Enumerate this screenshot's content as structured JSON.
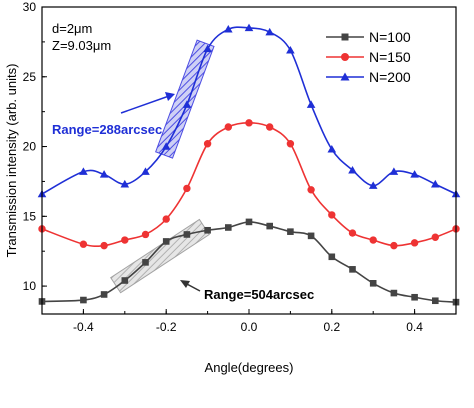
{
  "chart_data": {
    "type": "line",
    "xlabel": "Angle(degrees)",
    "ylabel": "Transmission intensity (arb. units)",
    "xlim": [
      -0.5,
      0.5
    ],
    "ylim": [
      8.0,
      30.0
    ],
    "xticks": [
      -0.4,
      -0.2,
      0.0,
      0.2,
      0.4
    ],
    "xtick_labels": [
      "-0.4",
      "-0.2",
      "0.0",
      "0.2",
      "0.4"
    ],
    "yticks": [
      10,
      15,
      20,
      25,
      30
    ],
    "ytick_labels": [
      "10",
      "15",
      "20",
      "25",
      "30"
    ],
    "grid": false,
    "legend_position": "top-right",
    "x": [
      -0.5,
      -0.4,
      -0.35,
      -0.3,
      -0.25,
      -0.2,
      -0.15,
      -0.1,
      -0.05,
      0.0,
      0.05,
      0.1,
      0.15,
      0.2,
      0.25,
      0.3,
      0.35,
      0.4,
      0.45,
      0.5
    ],
    "series": [
      {
        "name": "N=100",
        "color": "#444444",
        "marker": "square",
        "values": [
          8.9,
          9.0,
          9.4,
          10.4,
          11.7,
          13.2,
          13.7,
          14.0,
          14.2,
          14.6,
          14.3,
          13.9,
          13.6,
          12.1,
          11.2,
          10.2,
          9.5,
          9.2,
          8.95,
          8.85
        ]
      },
      {
        "name": "N=150",
        "color": "#ee3333",
        "marker": "circle",
        "values": [
          14.1,
          13.0,
          12.9,
          13.3,
          13.7,
          14.8,
          17.0,
          20.2,
          21.4,
          21.7,
          21.4,
          20.2,
          16.9,
          15.1,
          13.8,
          13.3,
          12.9,
          13.1,
          13.5,
          14.1
        ]
      },
      {
        "name": "N=200",
        "color": "#1f2fd6",
        "marker": "triangle",
        "values": [
          16.6,
          18.2,
          18.0,
          17.3,
          18.2,
          20.0,
          23.0,
          27.0,
          28.4,
          28.5,
          28.2,
          26.9,
          23.0,
          19.8,
          18.3,
          17.2,
          18.2,
          18.0,
          17.3,
          16.6
        ]
      }
    ],
    "annotations": {
      "param1": "d=2μm",
      "param2": "Z=9.03μm",
      "range_blue": "Range=288arcsec",
      "range_gray": "Range=504arcsec"
    },
    "shaded_bands": [
      {
        "series": "N=200",
        "color": "#3a3ae0",
        "x_from": -0.2,
        "x_from_y": 19.8,
        "x_to": -0.11,
        "x_to_y": 27.0
      },
      {
        "series": "N=100",
        "color": "#9a9a9a",
        "x_from": -0.31,
        "x_from_y": 10.3,
        "x_to": -0.12,
        "x_to_y": 14.0
      }
    ]
  }
}
